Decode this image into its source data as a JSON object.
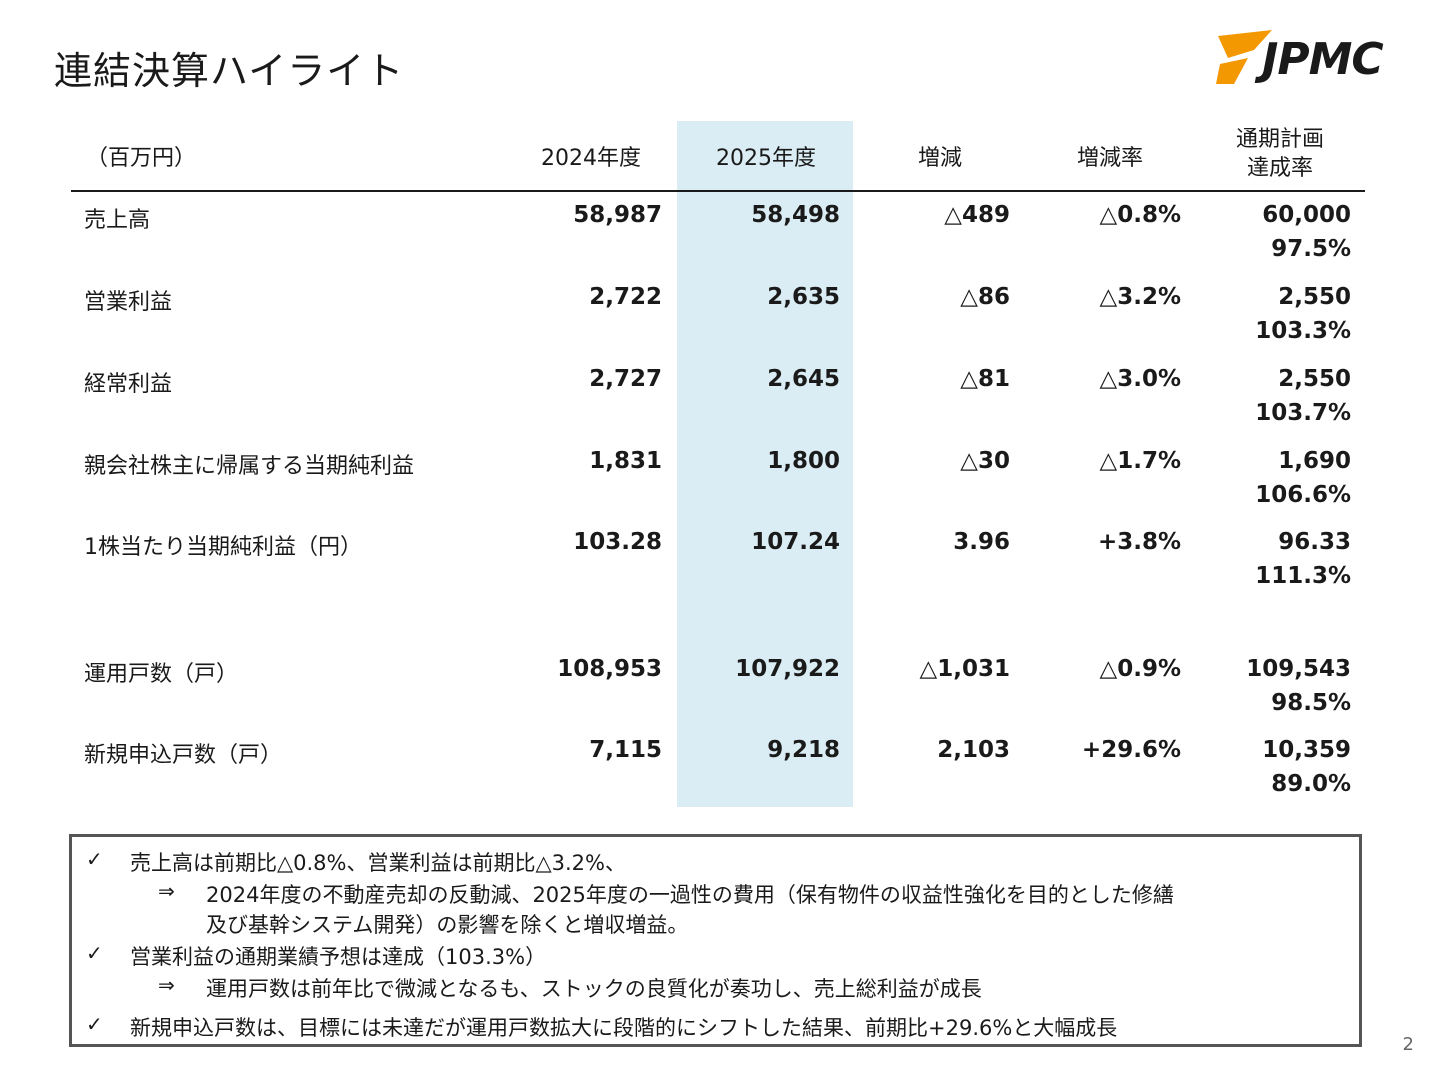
{
  "title": "連結決算ハイライト",
  "logo": {
    "text": "JPMC",
    "accent_color": "#f39800"
  },
  "accent": {
    "highlight_column": "#daedf4"
  },
  "table": {
    "headers": {
      "unit": "（百万円）",
      "fy2024": "2024年度",
      "fy2025": "2025年度",
      "change": "増減",
      "change_rate": "増減率",
      "plan_line1": "通期計画",
      "plan_line2": "達成率"
    },
    "rows": [
      {
        "label": "売上高",
        "fy2024": "58,987",
        "fy2025": "58,498",
        "change": "△489",
        "rate": "△0.8%",
        "plan": "60,000",
        "achievement": "97.5%"
      },
      {
        "label": "営業利益",
        "fy2024": "2,722",
        "fy2025": "2,635",
        "change": "△86",
        "rate": "△3.2%",
        "plan": "2,550",
        "achievement": "103.3%"
      },
      {
        "label": "経常利益",
        "fy2024": "2,727",
        "fy2025": "2,645",
        "change": "△81",
        "rate": "△3.0%",
        "plan": "2,550",
        "achievement": "103.7%"
      },
      {
        "label": "親会社株主に帰属する当期純利益",
        "fy2024": "1,831",
        "fy2025": "1,800",
        "change": "△30",
        "rate": "△1.7%",
        "plan": "1,690",
        "achievement": "106.6%"
      },
      {
        "label": "1株当たり当期純利益（円）",
        "fy2024": "103.28",
        "fy2025": "107.24",
        "change": "3.96",
        "rate": "+3.8%",
        "plan": "96.33",
        "achievement": "111.3%"
      },
      {
        "label": "運用戸数（戸）",
        "fy2024": "108,953",
        "fy2025": "107,922",
        "change": "△1,031",
        "rate": "△0.9%",
        "plan": "109,543",
        "achievement": "98.5%"
      },
      {
        "label": "新規申込戸数（戸）",
        "fy2024": "7,115",
        "fy2025": "9,218",
        "change": "2,103",
        "rate": "+29.6%",
        "plan": "10,359",
        "achievement": "89.0%"
      }
    ]
  },
  "notes": {
    "check_mark": "✓",
    "arrow_mark": "⇒",
    "n1": "売上高は前期比△0.8%、営業利益は前期比△3.2%、",
    "n1_sub_line1": "2024年度の不動産売却の反動減、2025年度の一過性の費用（保有物件の収益性強化を目的とした修繕",
    "n1_sub_line2": "及び基幹システム開発）の影響を除くと増収増益。",
    "n2": "営業利益の通期業績予想は達成（103.3%）",
    "n2_sub": "運用戸数は前年比で微減となるも、ストックの良質化が奏功し、売上総利益が成長",
    "n3": "新規申込戸数は、目標には未達だが運用戸数拡大に段階的にシフトした結果、前期比+29.6%と大幅成長"
  },
  "page_number": "2"
}
